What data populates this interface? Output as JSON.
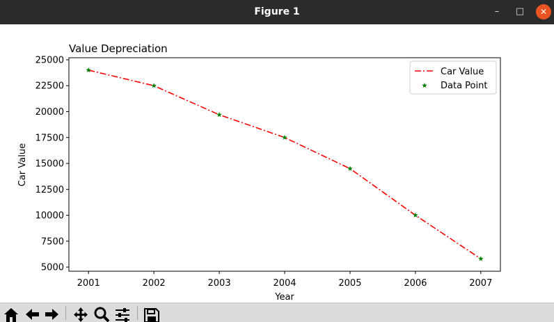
{
  "window": {
    "title": "Figure 1"
  },
  "toolbar": {
    "buttons": [
      {
        "name": "home-button",
        "icon": "home-icon"
      },
      {
        "name": "back-button",
        "icon": "arrow-left-icon"
      },
      {
        "name": "forward-button",
        "icon": "arrow-right-icon"
      },
      {
        "name": "pan-button",
        "icon": "move-icon"
      },
      {
        "name": "zoom-button",
        "icon": "magnifier-icon"
      },
      {
        "name": "configure-subplots-button",
        "icon": "sliders-icon"
      },
      {
        "name": "save-button",
        "icon": "floppy-icon"
      }
    ]
  },
  "chart_data": {
    "type": "line",
    "title": "Value Depreciation",
    "xlabel": "Year",
    "ylabel": "Car Value",
    "x": [
      2001,
      2002,
      2003,
      2004,
      2005,
      2006,
      2007
    ],
    "xlim": [
      2000.7,
      2007.3
    ],
    "ylim": [
      4600,
      25200
    ],
    "xticks": [
      "2001",
      "2002",
      "2003",
      "2004",
      "2005",
      "2006",
      "2007"
    ],
    "yticks": [
      5000,
      7500,
      10000,
      12500,
      15000,
      17500,
      20000,
      22500,
      25000
    ],
    "grid": false,
    "legend_position": "top-right",
    "series": [
      {
        "name": "Car Value",
        "kind": "line",
        "style": "dash-dot",
        "color": "#ff0000",
        "values": [
          24000,
          22500,
          19700,
          17500,
          14500,
          10000,
          5800
        ]
      },
      {
        "name": "Data Point",
        "kind": "scatter",
        "marker": "star",
        "color": "#008000",
        "values": [
          24000,
          22500,
          19700,
          17500,
          14500,
          10000,
          5800
        ]
      }
    ]
  }
}
